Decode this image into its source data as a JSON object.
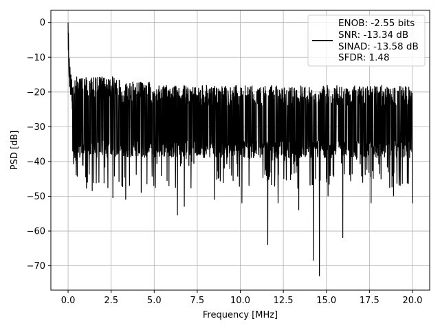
{
  "chart_data": {
    "type": "line",
    "xlabel": "Frequency [MHz]",
    "ylabel": "PSD [dB]",
    "xlim": [
      -1.0,
      21.0
    ],
    "ylim": [
      -77,
      3.5
    ],
    "xticks": [
      0.0,
      2.5,
      5.0,
      7.5,
      10.0,
      12.5,
      15.0,
      17.5,
      20.0
    ],
    "xtick_labels": [
      "0.0",
      "2.5",
      "5.0",
      "7.5",
      "10.0",
      "12.5",
      "15.0",
      "17.5",
      "20.0"
    ],
    "yticks": [
      0,
      -10,
      -20,
      -30,
      -40,
      -50,
      -60,
      -70
    ],
    "ytick_labels": [
      "0",
      "−10",
      "−20",
      "−30",
      "−40",
      "−50",
      "−60",
      "−70"
    ],
    "grid": true,
    "legend_placement": "upper-right",
    "legend_lines": [
      "ENOB: -2.55 bits",
      "SNR: -13.34 dB",
      "SINAD: -13.58 dB",
      "SFDR: 1.48"
    ],
    "series": [
      {
        "color": "#000000",
        "x_range": [
          0.0,
          20.0
        ],
        "noise_band": [
          -34.0,
          -17.0
        ],
        "peak": {
          "x": 0.0,
          "y": 0.0
        },
        "dips": [
          {
            "x": 0.47,
            "y": -44.0
          },
          {
            "x": 1.4,
            "y": -48.5
          },
          {
            "x": 2.6,
            "y": -50.5
          },
          {
            "x": 3.35,
            "y": -51.0
          },
          {
            "x": 4.25,
            "y": -49.0
          },
          {
            "x": 6.35,
            "y": -55.5
          },
          {
            "x": 6.75,
            "y": -53.0
          },
          {
            "x": 8.5,
            "y": -51.0
          },
          {
            "x": 10.1,
            "y": -52.0
          },
          {
            "x": 11.6,
            "y": -64.0
          },
          {
            "x": 12.2,
            "y": -52.0
          },
          {
            "x": 13.4,
            "y": -54.0
          },
          {
            "x": 14.25,
            "y": -68.5
          },
          {
            "x": 14.6,
            "y": -73.0
          },
          {
            "x": 15.1,
            "y": -50.0
          },
          {
            "x": 15.95,
            "y": -62.0
          },
          {
            "x": 17.6,
            "y": -52.0
          },
          {
            "x": 18.9,
            "y": -50.0
          },
          {
            "x": 20.0,
            "y": -52.0
          }
        ]
      }
    ]
  }
}
